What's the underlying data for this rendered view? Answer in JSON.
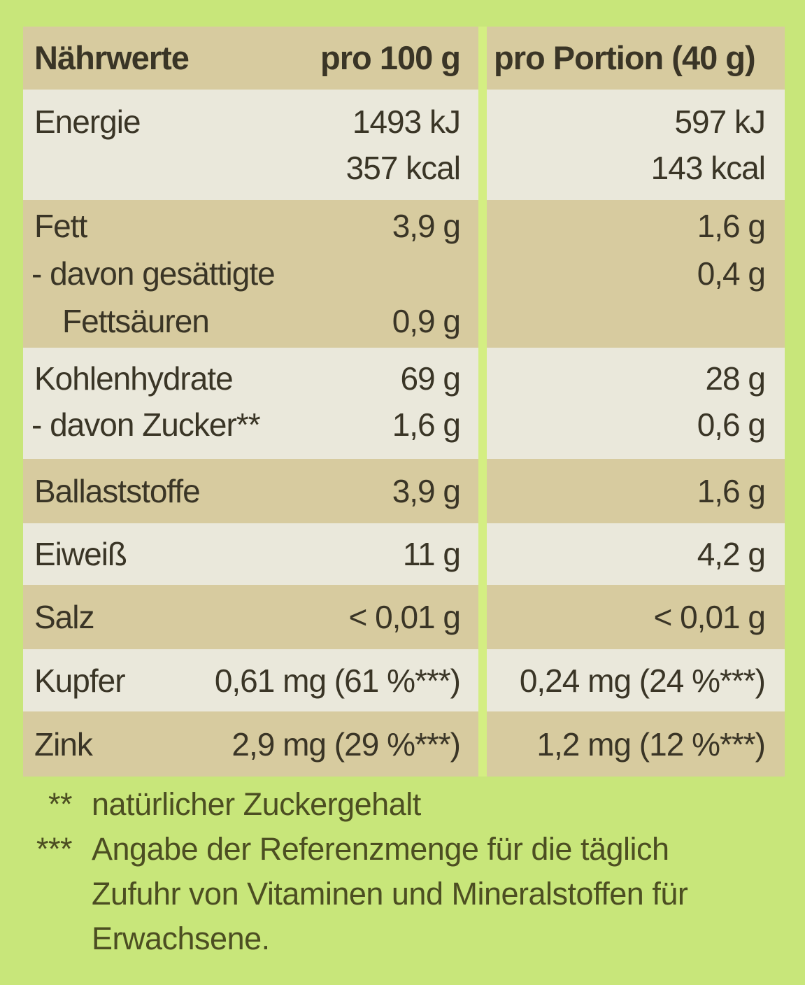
{
  "colors": {
    "background": "#c8e67a",
    "row_tan": "#d7cb9f",
    "row_cream": "#eae8db",
    "divider": "#d4ee82",
    "table_text": "#3a3526",
    "footnote_text": "#4c4e22"
  },
  "table": {
    "title": "Nährwerte",
    "col_per_100g": "pro 100 g",
    "col_per_portion": "pro Portion (40 g)",
    "rows": [
      {
        "label": "Energie",
        "v100_l1": "1493 kJ",
        "v100_l2": "357 kcal",
        "vp_l1": "597 kJ",
        "vp_l2": "143 kcal"
      },
      {
        "label": "Fett",
        "label_l2": "- davon gesättigte",
        "label_l3": "Fettsäuren",
        "v100_l1": "3,9 g",
        "v100_l3": "0,9 g",
        "vp_l1": "1,6 g",
        "vp_l3": "0,4 g"
      },
      {
        "label": "Kohlenhydrate",
        "label_l2": "- davon Zucker**",
        "v100_l1": "69 g",
        "v100_l2": "1,6 g",
        "vp_l1": "28 g",
        "vp_l2": "0,6 g"
      },
      {
        "label": "Ballaststoffe",
        "v100": "3,9 g",
        "vp": "1,6 g"
      },
      {
        "label": "Eiweiß",
        "v100": "11 g",
        "vp": "4,2 g"
      },
      {
        "label": "Salz",
        "v100": "< 0,01 g",
        "vp": "< 0,01 g"
      },
      {
        "label": "Kupfer",
        "v100": "0,61 mg (61 %***)",
        "vp": "0,24 mg (24 %***)"
      },
      {
        "label": "Zink",
        "v100": "2,9 mg (29 %***)",
        "vp": "1,2 mg (12 %***)"
      }
    ]
  },
  "footnotes": [
    {
      "marker": "**",
      "text": "natürlicher Zuckergehalt"
    },
    {
      "marker": "***",
      "text": "Angabe der Referenzmenge für die täglich\nZufuhr von Vitaminen und Mineralstoffen für\nErwachsene."
    }
  ]
}
